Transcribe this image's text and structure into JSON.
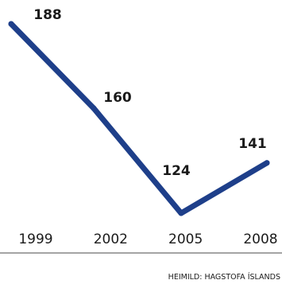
{
  "chart_data": {
    "type": "line",
    "x": [
      "1999",
      "2002",
      "2005",
      "2008"
    ],
    "series": [
      {
        "values": [
          188,
          160,
          124,
          141
        ],
        "color": "#1e3f8a"
      }
    ],
    "data_labels": [
      "188",
      "160",
      "124",
      "141"
    ],
    "ylim": [
      120,
      190
    ],
    "grid": false,
    "legend": "none",
    "title": "",
    "xlabel": "",
    "ylabel": ""
  },
  "source": "HEIMILD: HAGSTOFA ÍSLANDS"
}
